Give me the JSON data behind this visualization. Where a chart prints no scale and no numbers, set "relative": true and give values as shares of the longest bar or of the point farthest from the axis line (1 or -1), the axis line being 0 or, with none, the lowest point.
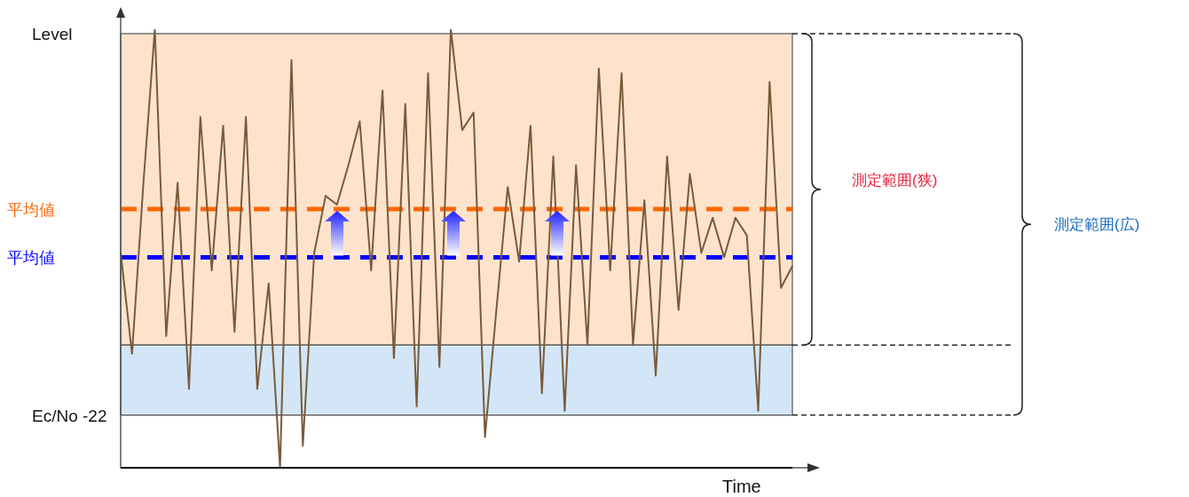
{
  "chart_data": {
    "type": "line",
    "relative": true,
    "xlabel": "Time",
    "categories": [
      null,
      null,
      null,
      null,
      null,
      null,
      null,
      null,
      null,
      null,
      null,
      null,
      null,
      null,
      null,
      null,
      null,
      null,
      null,
      null,
      null,
      null,
      null,
      null,
      null,
      null,
      null,
      null,
      null,
      null,
      null,
      null,
      null,
      null,
      null,
      null,
      null,
      null,
      null,
      null,
      null,
      null,
      null,
      null,
      null,
      null,
      null,
      null,
      null,
      null,
      null,
      null,
      null,
      null,
      null,
      null,
      null,
      null,
      null,
      null
    ],
    "series": [
      {
        "color": "#7a5a3a",
        "values": [
          0.49,
          0.26,
          0.65,
          1.0,
          0.3,
          0.65,
          0.18,
          0.8,
          0.45,
          0.78,
          0.31,
          0.8,
          0.18,
          0.42,
          0.0,
          0.93,
          0.05,
          0.49,
          0.62,
          0.6,
          0.69,
          0.79,
          0.45,
          0.86,
          0.25,
          0.83,
          0.14,
          0.9,
          0.23,
          1.0,
          0.77,
          0.81,
          0.07,
          0.36,
          0.64,
          0.47,
          0.78,
          0.17,
          0.71,
          0.13,
          0.69,
          0.28,
          0.91,
          0.45,
          0.9,
          0.28,
          0.61,
          0.21,
          0.71,
          0.36,
          0.67,
          0.49,
          0.57,
          0.48,
          0.57,
          0.53,
          0.13,
          0.88,
          0.41,
          0.46
        ]
      }
    ],
    "ref_lines": [
      {
        "axis": "y",
        "value": 0.59,
        "label": "平均値",
        "color": "#ff6600",
        "line_style": "dashed"
      },
      {
        "axis": "y",
        "value": 0.48,
        "label": "平均値",
        "color": "#0000ff",
        "line_style": "dashed"
      }
    ],
    "bands": [
      {
        "axis": "y",
        "from": 0.28,
        "to": 0.99,
        "color": "#fde3cc"
      },
      {
        "axis": "y",
        "from": 0.12,
        "to": 0.28,
        "color": "#d2e6f8"
      }
    ],
    "annotations": [
      "Level",
      "Ec/No -22",
      "測定範囲(狭)",
      "測定範囲(広)"
    ],
    "marker": "none",
    "line_style": "solid"
  }
}
